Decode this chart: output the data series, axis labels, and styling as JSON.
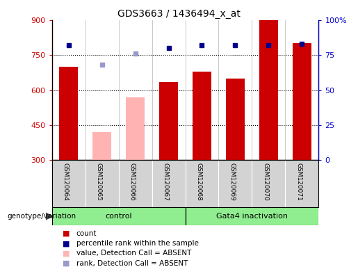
{
  "title": "GDS3663 / 1436494_x_at",
  "samples": [
    "GSM120064",
    "GSM120065",
    "GSM120066",
    "GSM120067",
    "GSM120068",
    "GSM120069",
    "GSM120070",
    "GSM120071"
  ],
  "count_values": [
    700,
    null,
    null,
    635,
    680,
    650,
    900,
    800
  ],
  "count_absent_values": [
    null,
    420,
    570,
    null,
    null,
    null,
    null,
    null
  ],
  "rank_values": [
    82,
    null,
    null,
    80,
    82,
    82,
    82,
    83
  ],
  "rank_absent_values": [
    null,
    68,
    76,
    null,
    null,
    null,
    null,
    null
  ],
  "ylim_left": [
    300,
    900
  ],
  "ylim_right": [
    0,
    100
  ],
  "yticks_left": [
    300,
    450,
    600,
    750,
    900
  ],
  "yticks_right": [
    0,
    25,
    50,
    75,
    100
  ],
  "yticklabels_right": [
    "0",
    "25",
    "50",
    "75",
    "100%"
  ],
  "control_label": "control",
  "treatment_label": "Gata4 inactivation",
  "genotype_label": "genotype/variation",
  "bar_color_present": "#cc0000",
  "bar_color_absent": "#ffb3b3",
  "rank_color_present": "#00008b",
  "rank_color_absent": "#9999cc",
  "bg_color_samples": "#d3d3d3",
  "bg_color_green": "#90ee90",
  "left_tick_color": "#cc0000",
  "right_tick_color": "#0000cc",
  "dotted_line_y": [
    450,
    600,
    750
  ],
  "legend_items": [
    {
      "label": "count",
      "color": "#cc0000"
    },
    {
      "label": "percentile rank within the sample",
      "color": "#00008b"
    },
    {
      "label": "value, Detection Call = ABSENT",
      "color": "#ffb3b3"
    },
    {
      "label": "rank, Detection Call = ABSENT",
      "color": "#9999cc"
    }
  ]
}
